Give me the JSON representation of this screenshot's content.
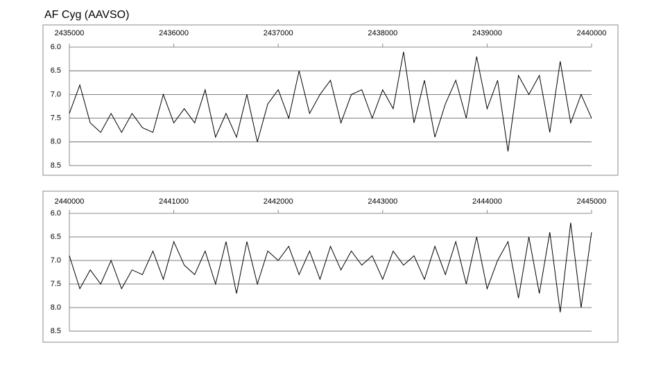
{
  "chart_data": [
    {
      "type": "line",
      "title": "AF Cyg (AAVSO)",
      "color": "#000000",
      "grid": true,
      "x": [
        2435000,
        2435100,
        2435200,
        2435300,
        2435400,
        2435500,
        2435600,
        2435700,
        2435800,
        2435900,
        2436000,
        2436100,
        2436200,
        2436300,
        2436400,
        2436500,
        2436600,
        2436700,
        2436800,
        2436900,
        2437000,
        2437100,
        2437200,
        2437300,
        2437400,
        2437500,
        2437600,
        2437700,
        2437800,
        2437900,
        2438000,
        2438100,
        2438200,
        2438300,
        2438400,
        2438500,
        2438600,
        2438700,
        2438800,
        2438900,
        2439000,
        2439100,
        2439200,
        2439300,
        2439400,
        2439500,
        2439600,
        2439700,
        2439800,
        2439900,
        2440000
      ],
      "values": [
        7.4,
        6.8,
        7.6,
        7.8,
        7.4,
        7.8,
        7.4,
        7.7,
        7.8,
        7.0,
        7.6,
        7.3,
        7.6,
        6.9,
        7.9,
        7.4,
        7.9,
        7.0,
        8.0,
        7.2,
        6.9,
        7.5,
        6.5,
        7.4,
        7.0,
        6.7,
        7.6,
        7.0,
        6.9,
        7.5,
        6.9,
        7.3,
        6.1,
        7.6,
        6.7,
        7.9,
        7.2,
        6.7,
        7.5,
        6.2,
        7.3,
        6.7,
        8.2,
        6.6,
        7.0,
        6.6,
        7.8,
        6.3,
        7.6,
        7.0,
        7.5
      ],
      "xlim": [
        2435000,
        2440000
      ],
      "xticks": [
        2435000,
        2436000,
        2437000,
        2438000,
        2439000,
        2440000
      ],
      "ylim": [
        8.5,
        6
      ],
      "yticks": [
        {
          "value": 6,
          "label": "6.0"
        },
        6.5,
        {
          "value": 7,
          "label": "7.0"
        },
        7.5,
        {
          "value": 8,
          "label": "8.0"
        },
        8.5
      ]
    },
    {
      "type": "line",
      "color": "#000000",
      "grid": true,
      "x": [
        2440000,
        2440100,
        2440200,
        2440300,
        2440400,
        2440500,
        2440600,
        2440700,
        2440800,
        2440900,
        2441000,
        2441100,
        2441200,
        2441300,
        2441400,
        2441500,
        2441600,
        2441700,
        2441800,
        2441900,
        2442000,
        2442100,
        2442200,
        2442300,
        2442400,
        2442500,
        2442600,
        2442700,
        2442800,
        2442900,
        2443000,
        2443100,
        2443200,
        2443300,
        2443400,
        2443500,
        2443600,
        2443700,
        2443800,
        2443900,
        2444000,
        2444100,
        2444200,
        2444300,
        2444400,
        2444500,
        2444600,
        2444700,
        2444800,
        2444900,
        2445000
      ],
      "values": [
        6.9,
        7.6,
        7.2,
        7.5,
        7.0,
        7.6,
        7.2,
        7.3,
        6.8,
        7.4,
        6.6,
        7.1,
        7.3,
        6.8,
        7.5,
        6.6,
        7.7,
        6.6,
        7.5,
        6.8,
        7.0,
        6.7,
        7.3,
        6.8,
        7.4,
        6.7,
        7.2,
        6.8,
        7.1,
        6.9,
        7.4,
        6.8,
        7.1,
        6.9,
        7.4,
        6.7,
        7.3,
        6.6,
        7.5,
        6.5,
        7.6,
        7.0,
        6.6,
        7.8,
        6.5,
        7.7,
        6.4,
        8.1,
        6.2,
        8.0,
        6.4
      ],
      "xlim": [
        2440000,
        2445000
      ],
      "xticks": [
        2440000,
        2441000,
        2442000,
        2443000,
        2444000,
        2445000
      ],
      "ylim": [
        8.5,
        6
      ],
      "yticks": [
        {
          "value": 6,
          "label": "6.0"
        },
        6.5,
        {
          "value": 7,
          "label": "7.0"
        },
        7.5,
        {
          "value": 8,
          "label": "8.0"
        },
        8.5
      ]
    }
  ]
}
